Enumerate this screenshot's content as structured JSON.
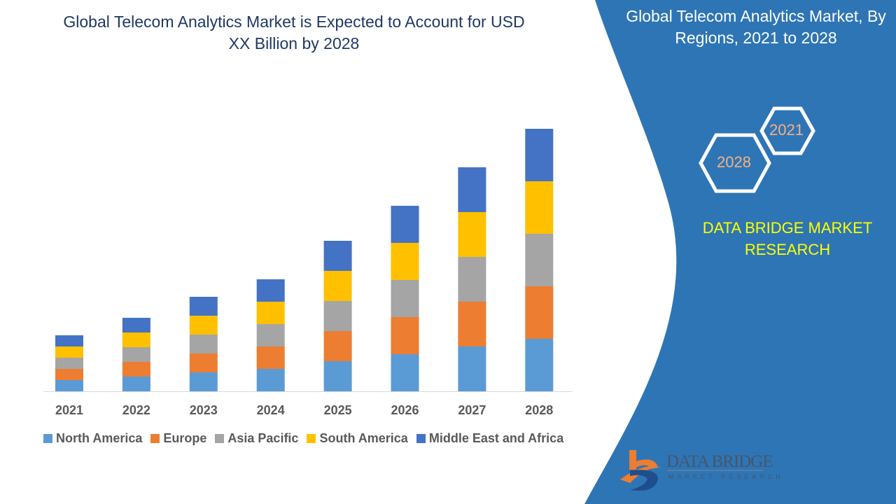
{
  "chart_data": {
    "type": "bar",
    "stacked": true,
    "title": "Global Telecom Analytics Market is Expected to Account for USD XX Billion by 2028",
    "categories": [
      "2021",
      "2022",
      "2023",
      "2024",
      "2025",
      "2026",
      "2027",
      "2028"
    ],
    "series": [
      {
        "name": "North America",
        "color": "#5b9bd5",
        "values": [
          16,
          21,
          27,
          32,
          43,
          53,
          64,
          75
        ]
      },
      {
        "name": "Europe",
        "color": "#ed7d31",
        "values": [
          16,
          21,
          27,
          32,
          43,
          53,
          64,
          75
        ]
      },
      {
        "name": "Asia Pacific",
        "color": "#a5a5a5",
        "values": [
          16,
          21,
          27,
          32,
          43,
          53,
          64,
          75
        ]
      },
      {
        "name": "South America",
        "color": "#ffc000",
        "values": [
          16,
          21,
          27,
          32,
          43,
          53,
          64,
          75
        ]
      },
      {
        "name": "Middle East and Africa",
        "color": "#4472c4",
        "values": [
          16,
          21,
          27,
          32,
          43,
          53,
          64,
          75
        ]
      }
    ],
    "xlabel": "",
    "ylabel": "",
    "y_axis_shown": false,
    "grid": false,
    "legend_position": "bottom"
  },
  "panel": {
    "title": "Global Telecom Analytics Market, By Regions, 2021 to 2028",
    "hex_years": [
      "2021",
      "2028"
    ],
    "brand": "DATA BRIDGE MARKET RESEARCH",
    "logo_name": "DATA BRIDGE",
    "logo_sub": "MARKET RESEARCH",
    "color": "#2e75b6"
  }
}
